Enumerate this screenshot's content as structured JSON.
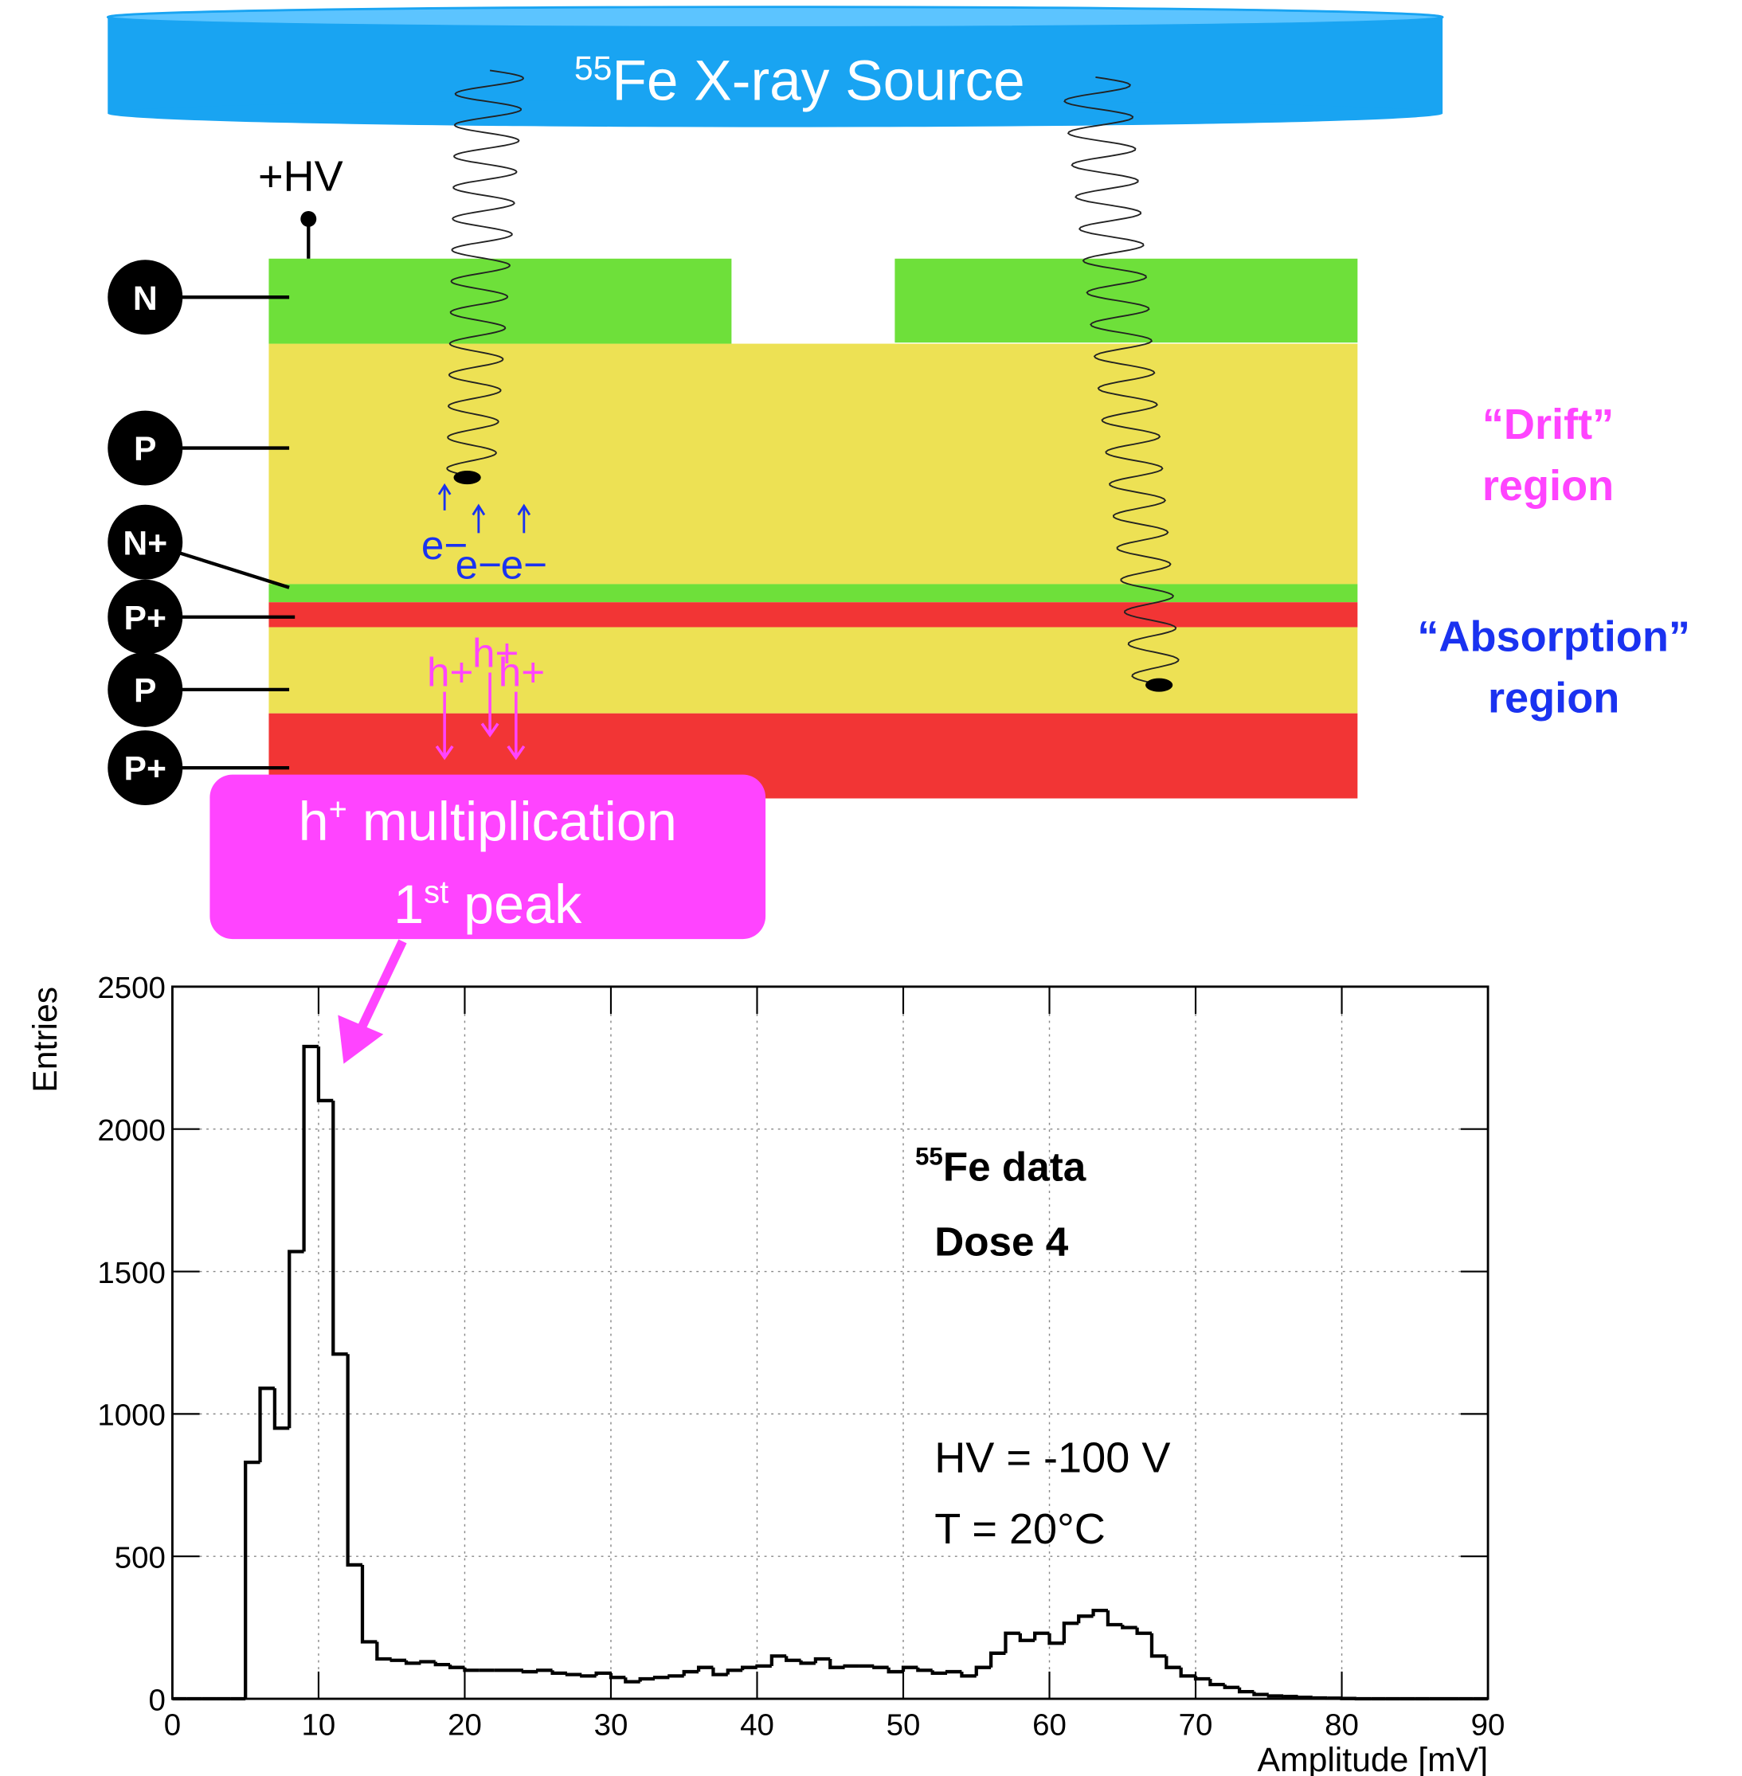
{
  "diagram": {
    "source": {
      "sup": "55",
      "text": "Fe X-ray Source"
    },
    "hv": "+HV",
    "layers": [
      "N",
      "P",
      "N+",
      "P+",
      "P",
      "P+"
    ],
    "electrons": [
      "e−",
      "e−",
      "e−"
    ],
    "holes": [
      "h+",
      "h+",
      "h+"
    ],
    "drift": [
      "“Drift”",
      "region"
    ],
    "absorption": [
      "“Absorption”",
      "region"
    ],
    "callout": {
      "line1": {
        "main": "h",
        "sup": "+",
        "rest": " multiplication"
      },
      "line2": {
        "main": "1",
        "sup": "st",
        "rest": " peak"
      }
    }
  },
  "chart_data": {
    "type": "histogram",
    "x_label": "Amplitude [mV]",
    "y_label": "Entries",
    "annotations": {
      "sup": "55",
      "fe": "Fe data",
      "dose": "Dose 4",
      "hv": "HV = -100 V",
      "temp": "T = 20°C"
    },
    "bins": [
      0,
      1,
      2,
      3,
      4,
      5,
      6,
      7,
      8,
      9,
      10,
      11,
      12,
      13,
      14,
      15,
      16,
      17,
      18,
      19,
      20,
      21,
      22,
      23,
      24,
      25,
      26,
      27,
      28,
      29,
      30,
      31,
      32,
      33,
      34,
      35,
      36,
      37,
      38,
      39,
      40,
      41,
      42,
      43,
      44,
      45,
      46,
      47,
      48,
      49,
      50,
      51,
      52,
      53,
      54,
      55,
      56,
      57,
      58,
      59,
      60,
      61,
      62,
      63,
      64,
      65,
      66,
      67,
      68,
      69,
      70,
      71,
      72,
      73,
      74,
      75,
      76,
      77,
      78,
      79,
      80,
      81,
      82,
      83,
      84,
      85,
      86,
      87,
      88,
      89,
      90
    ],
    "values": [
      0,
      0,
      0,
      0,
      0,
      830,
      1090,
      950,
      1570,
      2290,
      2100,
      1210,
      470,
      200,
      140,
      135,
      125,
      130,
      120,
      110,
      100,
      100,
      100,
      100,
      95,
      100,
      90,
      85,
      80,
      90,
      75,
      60,
      70,
      75,
      80,
      95,
      110,
      85,
      100,
      110,
      115,
      150,
      135,
      125,
      140,
      110,
      115,
      115,
      110,
      95,
      110,
      100,
      90,
      95,
      80,
      110,
      160,
      230,
      205,
      230,
      195,
      265,
      290,
      310,
      260,
      250,
      230,
      150,
      110,
      80,
      70,
      50,
      40,
      25,
      15,
      10,
      8,
      5,
      3,
      2,
      1,
      0,
      0,
      0,
      0,
      0,
      0,
      0,
      0,
      0
    ],
    "color": "#000000",
    "xlim": [
      0,
      90
    ],
    "ylim": [
      0,
      2500
    ],
    "xticks": [
      0,
      10,
      20,
      30,
      40,
      50,
      60,
      70,
      80,
      90
    ],
    "yticks": [
      0,
      500,
      1000,
      1500,
      2000,
      2500
    ],
    "grid": true
  }
}
